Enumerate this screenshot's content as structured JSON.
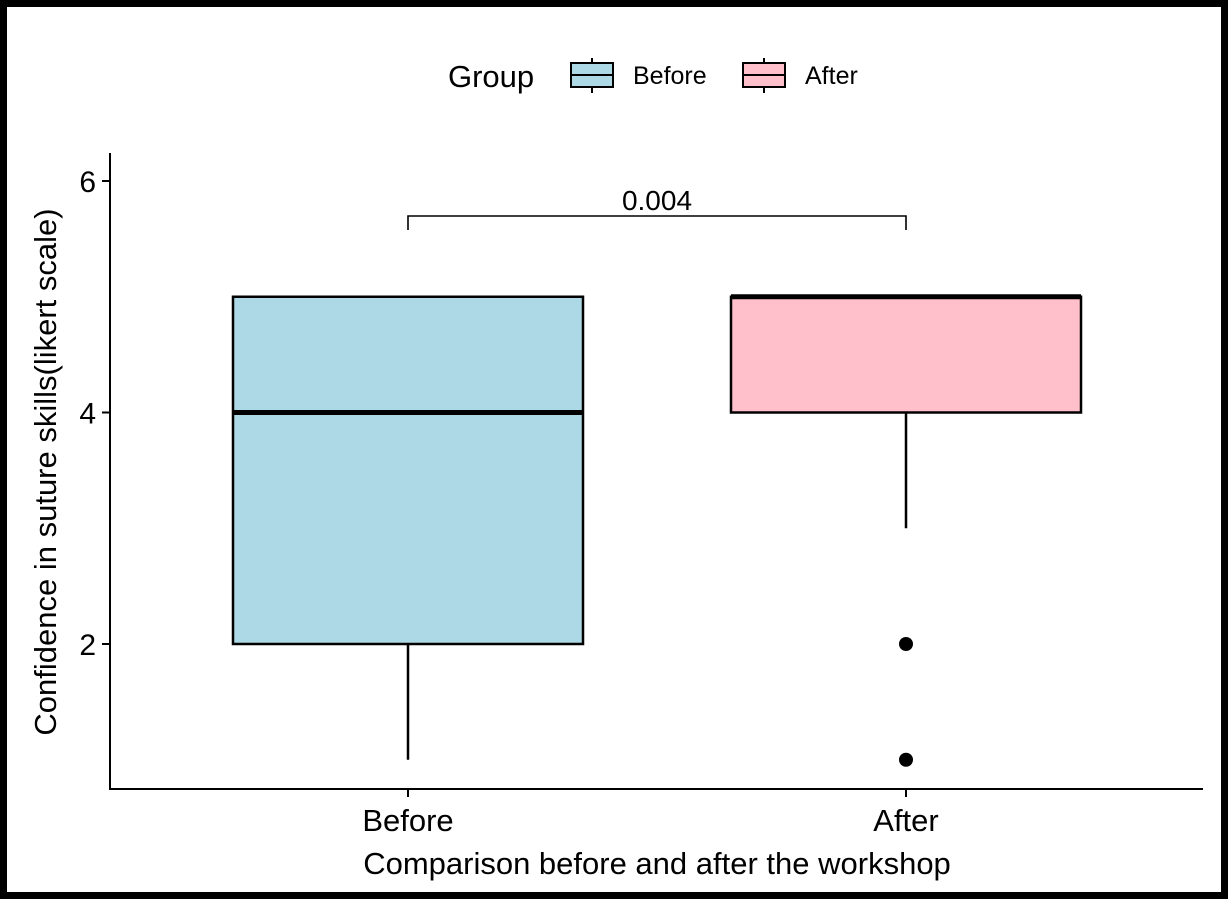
{
  "chart_data": {
    "type": "box",
    "title": "",
    "xlabel": "Comparison before and after the workshop",
    "ylabel": "Confidence in suture skills(likert scale)",
    "ylim": [
      0.88,
      6.3
    ],
    "yticks": [
      2,
      4,
      6
    ],
    "categories": [
      "Before",
      "After"
    ],
    "legend": {
      "title": "Group",
      "position": "top",
      "entries": [
        {
          "label": "Before",
          "color": "#ADD8E6"
        },
        {
          "label": "After",
          "color": "#FFC0CB"
        }
      ]
    },
    "series": [
      {
        "name": "Before",
        "color": "#ADD8E6",
        "q1": 2,
        "median": 4,
        "q3": 5,
        "whisker_low": 1,
        "whisker_high": 5,
        "outliers": []
      },
      {
        "name": "After",
        "color": "#FFC0CB",
        "q1": 4,
        "median": 5,
        "q3": 5,
        "whisker_low": 3,
        "whisker_high": 5,
        "outliers": [
          2,
          1
        ]
      }
    ],
    "annotations": [
      {
        "text": "0.004",
        "between": [
          "Before",
          "After"
        ],
        "type": "significance-bracket"
      }
    ],
    "grid": false
  }
}
